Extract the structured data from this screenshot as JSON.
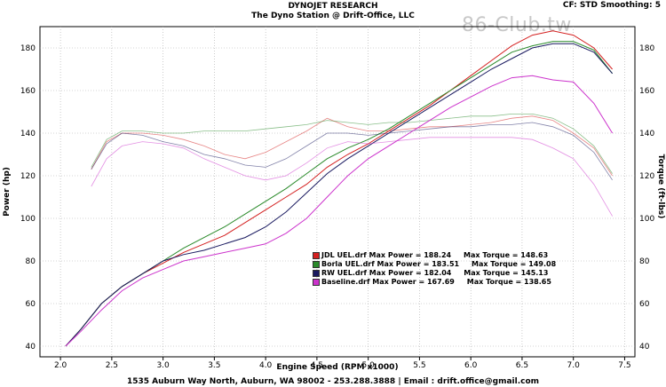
{
  "header": {
    "title": "DYNOJET RESEARCH",
    "subtitle": "The Dyno Station @ Drift-Office, LLC",
    "cf_info": "CF: STD  Smoothing: 5",
    "watermark": "86-Club.tw"
  },
  "footer": "1535 Auburn Way North, Auburn, WA 98002 - 253.288.3888 | Email : drift.office@gmail.com",
  "chart_data": {
    "type": "line",
    "xlabel": "Engine Speed (RPM x1000)",
    "ylabel_left": "Power (hp)",
    "ylabel_right": "Torque (ft-lbs)",
    "xlim": [
      1.8,
      7.6
    ],
    "ylim": [
      35,
      190
    ],
    "x_ticks": [
      "2.0",
      "2.5",
      "3.0",
      "3.5",
      "4.0",
      "4.5",
      "5.0",
      "5.5",
      "6.0",
      "6.5",
      "7.0",
      "7.5"
    ],
    "y_ticks": [
      "40",
      "60",
      "80",
      "100",
      "120",
      "140",
      "160",
      "180"
    ],
    "grid": true,
    "series": [
      {
        "name": "JDL UEL.drf",
        "legend": "JDL UEL.drf Max Power = 188.24     Max Torque = 148.63",
        "color": "#d42020",
        "power_x": [
          2.05,
          2.2,
          2.4,
          2.6,
          2.8,
          3.0,
          3.2,
          3.4,
          3.6,
          3.8,
          4.0,
          4.2,
          4.4,
          4.6,
          4.8,
          5.0,
          5.2,
          5.4,
          5.6,
          5.8,
          6.0,
          6.2,
          6.4,
          6.6,
          6.8,
          7.0,
          7.2,
          7.38
        ],
        "power_y": [
          40,
          48,
          60,
          68,
          74,
          79,
          84,
          88,
          92,
          98,
          104,
          110,
          116,
          124,
          130,
          135,
          141,
          147,
          153,
          160,
          167,
          174,
          181,
          186,
          188,
          186,
          180,
          170
        ],
        "torque_x": [
          2.3,
          2.45,
          2.6,
          2.8,
          3.0,
          3.2,
          3.4,
          3.6,
          3.8,
          4.0,
          4.2,
          4.4,
          4.6,
          4.8,
          5.0,
          5.2,
          5.4,
          5.6,
          5.8,
          6.0,
          6.2,
          6.4,
          6.6,
          6.8,
          7.0,
          7.2,
          7.38
        ],
        "torque_y": [
          123,
          136,
          140,
          140,
          139,
          137,
          134,
          130,
          128,
          131,
          136,
          141,
          147,
          143,
          141,
          141,
          142,
          143,
          143,
          144,
          145,
          147,
          148,
          146,
          140,
          133,
          120
        ]
      },
      {
        "name": "Borla UEL.drf",
        "legend": "Borla UEL.drf Max Power = 183.51     Max Torque = 149.08",
        "color": "#2a8a2a",
        "power_x": [
          2.05,
          2.2,
          2.4,
          2.6,
          2.8,
          3.0,
          3.2,
          3.4,
          3.6,
          3.8,
          4.0,
          4.2,
          4.4,
          4.6,
          4.8,
          5.0,
          5.2,
          5.4,
          5.6,
          5.8,
          6.0,
          6.2,
          6.4,
          6.6,
          6.8,
          7.0,
          7.2,
          7.38
        ],
        "power_y": [
          40,
          48,
          60,
          68,
          74,
          80,
          86,
          91,
          96,
          102,
          108,
          114,
          121,
          128,
          133,
          137,
          142,
          148,
          154,
          160,
          166,
          172,
          178,
          181,
          183,
          183,
          179,
          168
        ],
        "torque_x": [
          2.3,
          2.45,
          2.6,
          2.8,
          3.0,
          3.2,
          3.4,
          3.6,
          3.8,
          4.0,
          4.2,
          4.4,
          4.6,
          4.8,
          5.0,
          5.2,
          5.4,
          5.6,
          5.8,
          6.0,
          6.2,
          6.4,
          6.6,
          6.8,
          7.0,
          7.2,
          7.38
        ],
        "torque_y": [
          124,
          137,
          141,
          141,
          140,
          140,
          141,
          141,
          141,
          142,
          143,
          144,
          146,
          145,
          144,
          145,
          145,
          146,
          147,
          148,
          148,
          149,
          149,
          147,
          142,
          134,
          121
        ]
      },
      {
        "name": "RW UEL.drf",
        "legend": "RW UEL.drf Max Power = 182.04     Max Torque = 145.13",
        "color": "#1a1a60",
        "power_x": [
          2.05,
          2.2,
          2.4,
          2.6,
          2.8,
          3.0,
          3.2,
          3.4,
          3.6,
          3.8,
          4.0,
          4.2,
          4.4,
          4.6,
          4.8,
          5.0,
          5.2,
          5.4,
          5.6,
          5.8,
          6.0,
          6.2,
          6.4,
          6.6,
          6.8,
          7.0,
          7.2,
          7.38
        ],
        "power_y": [
          40,
          48,
          60,
          68,
          74,
          80,
          83,
          85,
          88,
          91,
          96,
          103,
          112,
          121,
          128,
          134,
          140,
          146,
          152,
          158,
          164,
          170,
          175,
          180,
          182,
          182,
          178,
          168
        ],
        "torque_x": [
          2.3,
          2.45,
          2.6,
          2.8,
          3.0,
          3.2,
          3.4,
          3.6,
          3.8,
          4.0,
          4.2,
          4.4,
          4.6,
          4.8,
          5.0,
          5.2,
          5.4,
          5.6,
          5.8,
          6.0,
          6.2,
          6.4,
          6.6,
          6.8,
          7.0,
          7.2,
          7.38
        ],
        "torque_y": [
          123,
          135,
          140,
          139,
          136,
          134,
          130,
          128,
          125,
          124,
          128,
          134,
          140,
          140,
          139,
          140,
          141,
          142,
          143,
          143,
          144,
          144,
          145,
          143,
          139,
          131,
          118
        ]
      },
      {
        "name": "Baseline.drf",
        "legend": "Baseline.drf Max Power = 167.69     Max Torque = 138.65",
        "color": "#cc33cc",
        "power_x": [
          2.05,
          2.2,
          2.4,
          2.6,
          2.8,
          3.0,
          3.2,
          3.4,
          3.6,
          3.8,
          4.0,
          4.2,
          4.4,
          4.6,
          4.8,
          5.0,
          5.2,
          5.4,
          5.6,
          5.8,
          6.0,
          6.2,
          6.4,
          6.6,
          6.8,
          7.0,
          7.2,
          7.38
        ],
        "power_y": [
          40,
          47,
          57,
          66,
          72,
          76,
          80,
          82,
          84,
          86,
          88,
          93,
          100,
          110,
          120,
          128,
          134,
          140,
          146,
          152,
          157,
          162,
          166,
          167,
          165,
          164,
          154,
          140
        ],
        "torque_x": [
          2.3,
          2.45,
          2.6,
          2.8,
          3.0,
          3.2,
          3.4,
          3.6,
          3.8,
          4.0,
          4.2,
          4.4,
          4.6,
          4.8,
          5.0,
          5.2,
          5.4,
          5.6,
          5.8,
          6.0,
          6.2,
          6.4,
          6.6,
          6.8,
          7.0,
          7.2,
          7.38
        ],
        "torque_y": [
          115,
          128,
          134,
          136,
          135,
          133,
          128,
          124,
          120,
          118,
          120,
          126,
          133,
          136,
          135,
          136,
          137,
          138,
          138,
          138,
          138,
          138,
          137,
          133,
          128,
          116,
          101
        ]
      }
    ]
  }
}
